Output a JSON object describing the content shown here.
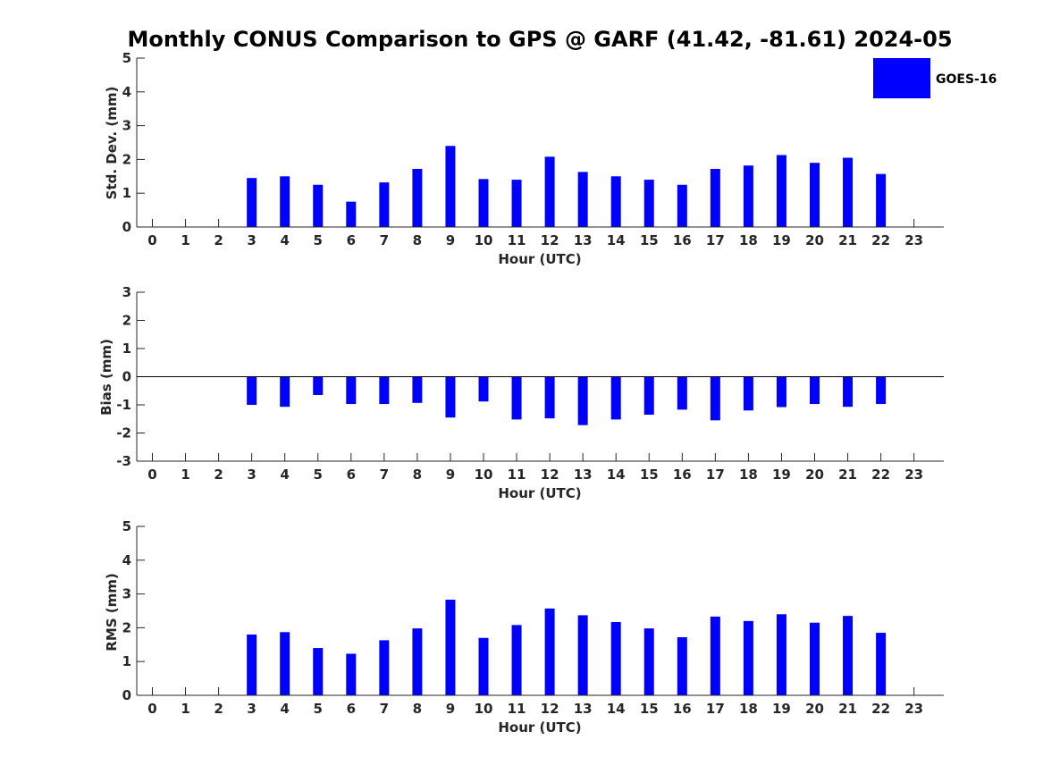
{
  "figure": {
    "title": "Monthly CONUS Comparison to GPS @ GARF (41.42, -81.61) 2024-05"
  },
  "legend": {
    "label": "GOES-16",
    "placement": "top-right",
    "color": "#0000ff"
  },
  "colors": {
    "bar": "#0000ff",
    "axis": "#262626",
    "zero_line": "#000000"
  },
  "chart_data": [
    {
      "type": "bar",
      "categories": [
        "0",
        "1",
        "2",
        "3",
        "4",
        "5",
        "6",
        "7",
        "8",
        "9",
        "10",
        "11",
        "12",
        "13",
        "14",
        "15",
        "16",
        "17",
        "18",
        "19",
        "20",
        "21",
        "22",
        "23"
      ],
      "series": [
        {
          "name": "GOES-16",
          "values": [
            null,
            null,
            null,
            1.45,
            1.5,
            1.25,
            0.75,
            1.32,
            1.72,
            2.4,
            1.42,
            1.4,
            2.08,
            1.63,
            1.5,
            1.4,
            1.25,
            1.72,
            1.82,
            2.13,
            1.9,
            2.05,
            1.57,
            null
          ]
        }
      ],
      "xlabel": "Hour (UTC)",
      "ylabel": "Std. Dev. (mm)",
      "ylim": [
        0,
        5
      ],
      "yticks": [
        "0",
        "1",
        "2",
        "3",
        "4",
        "5"
      ],
      "grid": false,
      "zero_line": false
    },
    {
      "type": "bar",
      "categories": [
        "0",
        "1",
        "2",
        "3",
        "4",
        "5",
        "6",
        "7",
        "8",
        "9",
        "10",
        "11",
        "12",
        "13",
        "14",
        "15",
        "16",
        "17",
        "18",
        "19",
        "20",
        "21",
        "22",
        "23"
      ],
      "series": [
        {
          "name": "GOES-16",
          "values": [
            null,
            null,
            null,
            -1.0,
            -1.07,
            -0.65,
            -0.97,
            -0.97,
            -0.93,
            -1.45,
            -0.88,
            -1.52,
            -1.48,
            -1.72,
            -1.52,
            -1.35,
            -1.17,
            -1.55,
            -1.2,
            -1.08,
            -0.97,
            -1.07,
            -0.97,
            null
          ]
        }
      ],
      "xlabel": "Hour (UTC)",
      "ylabel": "Bias (mm)",
      "ylim": [
        -3,
        3
      ],
      "yticks": [
        "-3",
        "-2",
        "-1",
        "0",
        "1",
        "2",
        "3"
      ],
      "grid": false,
      "zero_line": true
    },
    {
      "type": "bar",
      "categories": [
        "0",
        "1",
        "2",
        "3",
        "4",
        "5",
        "6",
        "7",
        "8",
        "9",
        "10",
        "11",
        "12",
        "13",
        "14",
        "15",
        "16",
        "17",
        "18",
        "19",
        "20",
        "21",
        "22",
        "23"
      ],
      "series": [
        {
          "name": "GOES-16",
          "values": [
            null,
            null,
            null,
            1.8,
            1.87,
            1.4,
            1.23,
            1.63,
            1.98,
            2.83,
            1.7,
            2.08,
            2.57,
            2.37,
            2.17,
            1.98,
            1.72,
            2.33,
            2.2,
            2.4,
            2.15,
            2.35,
            1.85,
            null
          ]
        }
      ],
      "xlabel": "Hour (UTC)",
      "ylabel": "RMS (mm)",
      "ylim": [
        0,
        5
      ],
      "yticks": [
        "0",
        "1",
        "2",
        "3",
        "4",
        "5"
      ],
      "grid": false,
      "zero_line": false
    }
  ]
}
